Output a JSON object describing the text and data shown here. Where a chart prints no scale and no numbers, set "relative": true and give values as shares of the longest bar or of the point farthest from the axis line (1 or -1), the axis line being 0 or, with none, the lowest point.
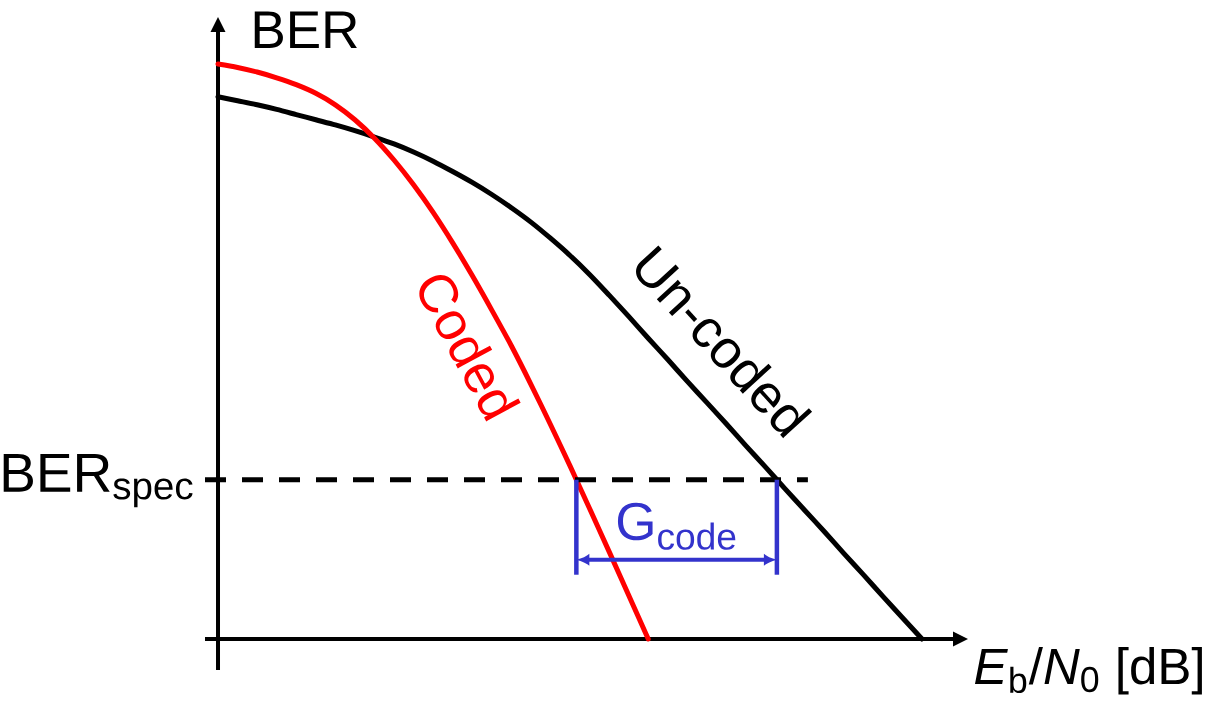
{
  "chart_data": {
    "type": "line",
    "relative": true,
    "xlabel": "*E*$_{b}$/*N*$_{0}$ [dB]",
    "ylabel": "BER",
    "categories": [
      null,
      null,
      null,
      null,
      null,
      null,
      null,
      null,
      null,
      null,
      null,
      null,
      null,
      null,
      null,
      null,
      null,
      null,
      null,
      null,
      null,
      null,
      null,
      null,
      null,
      null,
      null,
      null,
      null,
      null,
      null,
      null,
      null,
      null,
      null,
      null,
      null
    ],
    "series": [
      {
        "name": "Un-coded",
        "color": "#000000",
        "values": [
          0.943,
          0.936,
          0.929,
          0.921,
          0.912,
          0.903,
          0.894,
          0.884,
          0.873,
          0.861,
          0.847,
          0.831,
          0.813,
          0.794,
          0.773,
          0.75,
          0.725,
          0.697,
          0.667,
          0.634,
          0.598,
          0.561,
          0.523,
          0.486,
          0.448,
          0.411,
          0.374,
          0.336,
          0.299,
          0.261,
          0.224,
          0.187,
          0.149,
          0.112,
          0.074,
          0.037,
          0
        ]
      },
      {
        "name": "Coded",
        "color": "#ff0000",
        "values": [
          1.0,
          0.994,
          0.986,
          0.976,
          0.964,
          0.949,
          0.929,
          0.903,
          0.871,
          0.833,
          0.79,
          0.742,
          0.689,
          0.632,
          0.572,
          0.51,
          0.443,
          0.373,
          0.301,
          0.227,
          0.152,
          0.076,
          0,
          null,
          null,
          null,
          null,
          null,
          null,
          null,
          null,
          null,
          null,
          null,
          null,
          null,
          null
        ]
      }
    ],
    "ref_lines": [
      {
        "axis": "y",
        "value": 0.277,
        "label": "BER$_{spec}$",
        "color": "#000000",
        "line_style": "dashed"
      }
    ],
    "annotations": [
      {
        "text": "G$_{code}$",
        "y": 0.277
      }
    ]
  }
}
